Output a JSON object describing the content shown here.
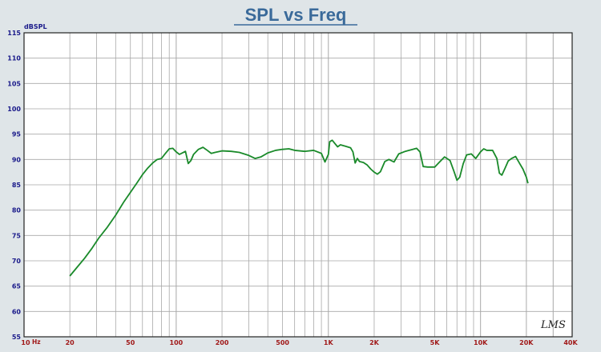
{
  "chart_data": {
    "type": "line",
    "title": "SPL vs Freq",
    "ylabel": "dBSPL",
    "xlabel": "",
    "x_scale": "log",
    "xlim": [
      10,
      40000
    ],
    "ylim": [
      55,
      115
    ],
    "grid": true,
    "yticks": [
      55,
      60,
      65,
      70,
      75,
      80,
      85,
      90,
      95,
      100,
      105,
      110,
      115
    ],
    "xtick_labels": [
      {
        "value": 10,
        "label": "10"
      },
      {
        "value": 20,
        "label": "20"
      },
      {
        "value": 50,
        "label": "50"
      },
      {
        "value": 100,
        "label": "100"
      },
      {
        "value": 200,
        "label": "200"
      },
      {
        "value": 500,
        "label": "500"
      },
      {
        "value": 1000,
        "label": "1K"
      },
      {
        "value": 2000,
        "label": "2K"
      },
      {
        "value": 5000,
        "label": "5K"
      },
      {
        "value": 10000,
        "label": "10K"
      },
      {
        "value": 20000,
        "label": "20K"
      },
      {
        "value": 40000,
        "label": "40K"
      }
    ],
    "x_unit_label": "Hz",
    "watermark": "LMS",
    "colors": {
      "line": "#1a8a2a",
      "title": "#3a6a9a",
      "y_labels": "#1a1a8a",
      "x_labels": "#a01818",
      "grid": "#a8a8a8",
      "plot_bg": "#ffffff",
      "page_bg": "#dfe5e8"
    },
    "series": [
      {
        "values": [
          [
            20,
            67
          ],
          [
            22,
            68.5
          ],
          [
            25,
            70.5
          ],
          [
            28,
            72.5
          ],
          [
            31,
            74.5
          ],
          [
            35,
            76.5
          ],
          [
            40,
            79
          ],
          [
            45,
            81.5
          ],
          [
            50,
            83.5
          ],
          [
            55,
            85.3
          ],
          [
            60,
            87
          ],
          [
            65,
            88.3
          ],
          [
            70,
            89.3
          ],
          [
            75,
            90
          ],
          [
            80,
            90.2
          ],
          [
            85,
            91.2
          ],
          [
            90,
            92.1
          ],
          [
            95,
            92.2
          ],
          [
            100,
            91.5
          ],
          [
            105,
            91
          ],
          [
            110,
            91.3
          ],
          [
            115,
            91.6
          ],
          [
            120,
            89.2
          ],
          [
            125,
            89.8
          ],
          [
            130,
            91
          ],
          [
            140,
            92
          ],
          [
            150,
            92.4
          ],
          [
            160,
            91.8
          ],
          [
            170,
            91.2
          ],
          [
            180,
            91.4
          ],
          [
            200,
            91.7
          ],
          [
            230,
            91.6
          ],
          [
            260,
            91.4
          ],
          [
            300,
            90.8
          ],
          [
            330,
            90.2
          ],
          [
            360,
            90.5
          ],
          [
            400,
            91.3
          ],
          [
            450,
            91.8
          ],
          [
            500,
            92
          ],
          [
            550,
            92.1
          ],
          [
            600,
            91.8
          ],
          [
            700,
            91.6
          ],
          [
            800,
            91.8
          ],
          [
            900,
            91.2
          ],
          [
            950,
            89.5
          ],
          [
            1000,
            91
          ],
          [
            1020,
            93.5
          ],
          [
            1060,
            93.8
          ],
          [
            1100,
            93.2
          ],
          [
            1150,
            92.5
          ],
          [
            1200,
            92.9
          ],
          [
            1300,
            92.6
          ],
          [
            1400,
            92.3
          ],
          [
            1450,
            91.5
          ],
          [
            1500,
            89.3
          ],
          [
            1550,
            90.2
          ],
          [
            1600,
            89.6
          ],
          [
            1700,
            89.4
          ],
          [
            1800,
            88.9
          ],
          [
            1900,
            88.1
          ],
          [
            2000,
            87.5
          ],
          [
            2100,
            87.1
          ],
          [
            2200,
            87.6
          ],
          [
            2350,
            89.6
          ],
          [
            2500,
            90
          ],
          [
            2700,
            89.5
          ],
          [
            2900,
            91.1
          ],
          [
            3200,
            91.6
          ],
          [
            3500,
            91.9
          ],
          [
            3800,
            92.2
          ],
          [
            4000,
            91.5
          ],
          [
            4200,
            88.6
          ],
          [
            4500,
            88.5
          ],
          [
            5000,
            88.5
          ],
          [
            5300,
            89.3
          ],
          [
            5800,
            90.5
          ],
          [
            6300,
            89.8
          ],
          [
            6700,
            87.6
          ],
          [
            7000,
            85.9
          ],
          [
            7300,
            86.5
          ],
          [
            7700,
            89.2
          ],
          [
            8100,
            90.9
          ],
          [
            8700,
            91.1
          ],
          [
            9300,
            90.2
          ],
          [
            10000,
            91.5
          ],
          [
            10500,
            92.1
          ],
          [
            11000,
            91.8
          ],
          [
            12000,
            91.8
          ],
          [
            12800,
            90.2
          ],
          [
            13300,
            87.3
          ],
          [
            13800,
            86.9
          ],
          [
            14500,
            88.3
          ],
          [
            15200,
            89.7
          ],
          [
            16000,
            90.2
          ],
          [
            17000,
            90.6
          ],
          [
            18000,
            89.3
          ],
          [
            19000,
            88.1
          ],
          [
            20000,
            86.5
          ],
          [
            20500,
            85.3
          ]
        ]
      }
    ]
  }
}
